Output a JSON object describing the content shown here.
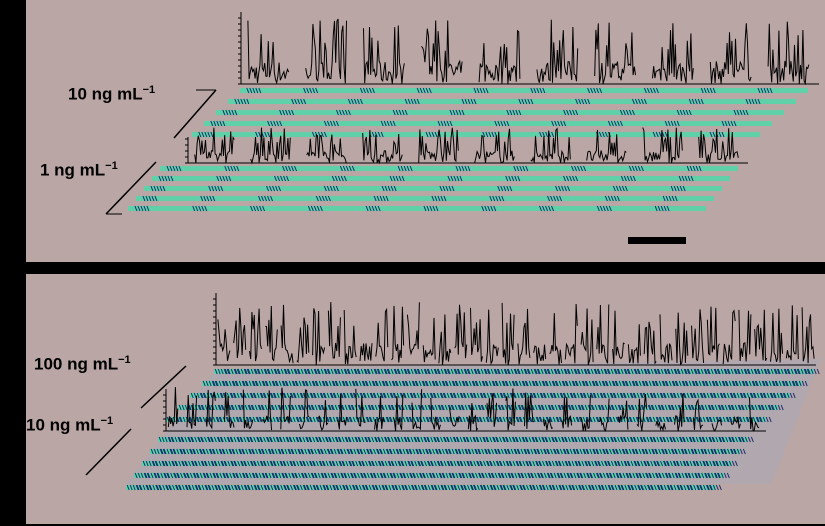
{
  "top_panel": {
    "label_high": {
      "value": "10 ng mL",
      "sup": "−1"
    },
    "label_low": {
      "value": "1 ng mL",
      "sup": "−1"
    }
  },
  "bottom_panel": {
    "label_high": {
      "value": "100 ng mL",
      "sup": "−1"
    },
    "label_low": {
      "value": "10 ng mL",
      "sup": "−1"
    }
  },
  "colors": {
    "panel_background": "#b9a6a5",
    "frame": "#000000",
    "array_stripe": "#5fd0a8",
    "array_dash": "#1a2a6a",
    "trace": "#000000"
  }
}
